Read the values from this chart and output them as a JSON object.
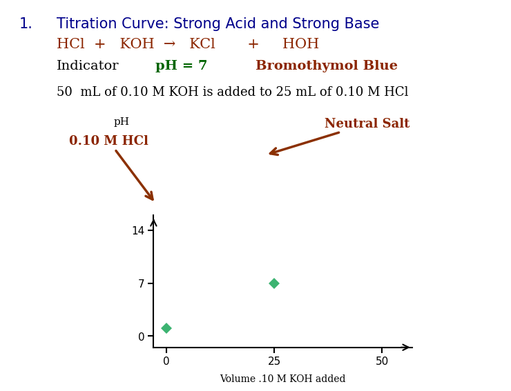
{
  "title_number": "1.",
  "title_text": "Titration Curve: Strong Acid and Strong Base",
  "title_color": "#00008B",
  "equation_parts": [
    "HCl  +   KOH  →   KCl     +     HOH"
  ],
  "equation_color": "#8B2500",
  "indicator_label": "Indicator",
  "indicator_label_color": "#000000",
  "ph_eq_text": "pH = 7",
  "ph_eq_color": "#006400",
  "indicator_name": "Bromothymol Blue",
  "indicator_name_color": "#8B2500",
  "description": "50  mL of 0.10 M KOH is added to 25 mL of 0.10 M HCl",
  "description_color": "#000000",
  "xlabel": "Volume .10 M KOH added",
  "ylabel": "pH",
  "xlim": [
    -3,
    57
  ],
  "ylim": [
    -1.5,
    16
  ],
  "xticks": [
    0,
    25,
    50
  ],
  "yticks": [
    0,
    7,
    14
  ],
  "point1_x": 0,
  "point1_y": 1,
  "point2_x": 25,
  "point2_y": 7,
  "point_color": "#3CB371",
  "label_hcl": "0.10 M HCl",
  "label_hcl_color": "#8B2500",
  "label_neutral": "Neutral Salt",
  "label_neutral_color": "#8B2500",
  "arrow_color": "#8B3000",
  "background_color": "#FFFFFF"
}
